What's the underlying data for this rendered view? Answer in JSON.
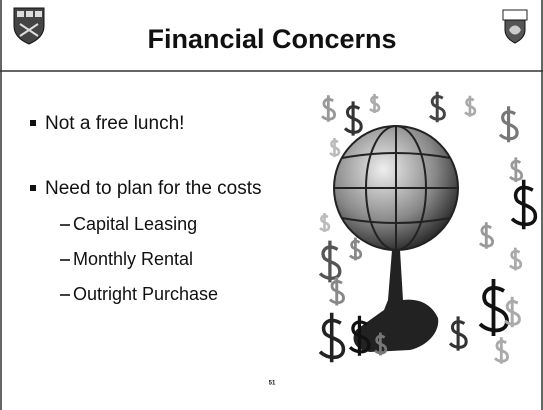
{
  "header": {
    "title": "Financial Concerns"
  },
  "bullets": [
    {
      "text": "Not a free lunch!"
    },
    {
      "text": "Need to plan for the costs",
      "subitems": [
        "Capital Leasing",
        "Monthly Rental",
        "Outright Purchase"
      ]
    }
  ],
  "footer": {
    "page_number": "51"
  }
}
